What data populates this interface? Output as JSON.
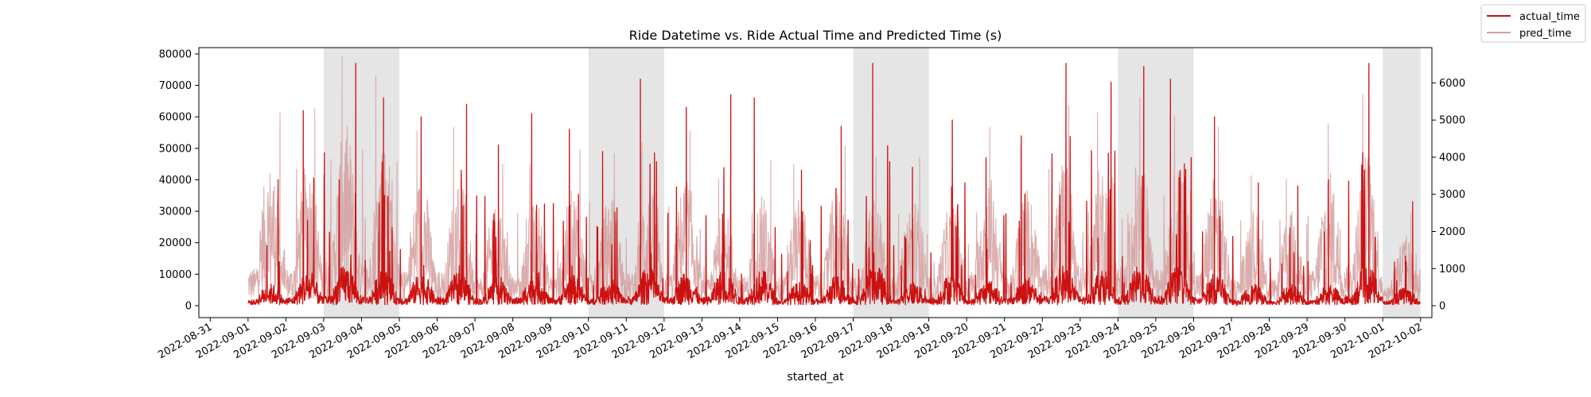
{
  "chart_data": {
    "type": "line",
    "title": "Ride Datetime vs. Ride Actual Time and Predicted Time (s)",
    "xlabel": "started_at",
    "ylabel": "",
    "x_range": [
      "2022-08-30T16:48:00",
      "2022-10-02T07:12:00"
    ],
    "x_ticks": [
      "2022-08-31",
      "2022-09-01",
      "2022-09-02",
      "2022-09-03",
      "2022-09-04",
      "2022-09-05",
      "2022-09-06",
      "2022-09-07",
      "2022-09-08",
      "2022-09-09",
      "2022-09-10",
      "2022-09-11",
      "2022-09-12",
      "2022-09-13",
      "2022-09-14",
      "2022-09-15",
      "2022-09-16",
      "2022-09-17",
      "2022-09-18",
      "2022-09-19",
      "2022-09-20",
      "2022-09-21",
      "2022-09-22",
      "2022-09-23",
      "2022-09-24",
      "2022-09-25",
      "2022-09-26",
      "2022-09-27",
      "2022-09-28",
      "2022-09-29",
      "2022-09-30",
      "2022-10-01",
      "2022-10-02"
    ],
    "y_left": {
      "range": [
        -3800,
        82000
      ],
      "ticks": [
        0,
        10000,
        20000,
        30000,
        40000,
        50000,
        60000,
        70000,
        80000
      ]
    },
    "y_right": {
      "range": [
        -320,
        6950
      ],
      "ticks": [
        0,
        1000,
        2000,
        3000,
        4000,
        5000,
        6000
      ]
    },
    "weekend_shading": [
      [
        "2022-09-03",
        "2022-09-05"
      ],
      [
        "2022-09-10",
        "2022-09-12"
      ],
      [
        "2022-09-17",
        "2022-09-19"
      ],
      [
        "2022-09-24",
        "2022-09-26"
      ],
      [
        "2022-10-01",
        "2022-10-01"
      ]
    ],
    "series": [
      {
        "name": "actual_time",
        "color": "#cc1111",
        "axis": "left",
        "daily_peak_values": [
          [
            "2022-09-01",
            40000
          ],
          [
            "2022-09-02",
            62000
          ],
          [
            "2022-09-03",
            77000
          ],
          [
            "2022-09-04",
            66000
          ],
          [
            "2022-09-05",
            60000
          ],
          [
            "2022-09-06",
            64000
          ],
          [
            "2022-09-07",
            51000
          ],
          [
            "2022-09-08",
            61000
          ],
          [
            "2022-09-09",
            56000
          ],
          [
            "2022-09-10",
            49000
          ],
          [
            "2022-09-11",
            72000
          ],
          [
            "2022-09-12",
            63000
          ],
          [
            "2022-09-13",
            67000
          ],
          [
            "2022-09-14",
            66000
          ],
          [
            "2022-09-15",
            43000
          ],
          [
            "2022-09-16",
            57000
          ],
          [
            "2022-09-17",
            77000
          ],
          [
            "2022-09-18",
            44000
          ],
          [
            "2022-09-19",
            59000
          ],
          [
            "2022-09-20",
            47000
          ],
          [
            "2022-09-21",
            54000
          ],
          [
            "2022-09-22",
            77000
          ],
          [
            "2022-09-23",
            71000
          ],
          [
            "2022-09-24",
            76000
          ],
          [
            "2022-09-25",
            72000
          ],
          [
            "2022-09-26",
            60000
          ],
          [
            "2022-09-27",
            39000
          ],
          [
            "2022-09-28",
            38000
          ],
          [
            "2022-09-29",
            40000
          ],
          [
            "2022-09-30",
            77000
          ],
          [
            "2022-10-01",
            33000
          ]
        ]
      },
      {
        "name": "pred_time",
        "color": "#d4a0a0",
        "axis": "right",
        "daily_peak_values": [
          [
            "2022-09-01",
            5200
          ],
          [
            "2022-09-02",
            5300
          ],
          [
            "2022-09-03",
            6700
          ],
          [
            "2022-09-04",
            6200
          ],
          [
            "2022-09-05",
            4700
          ],
          [
            "2022-09-06",
            4800
          ],
          [
            "2022-09-07",
            3800
          ],
          [
            "2022-09-08",
            3800
          ],
          [
            "2022-09-09",
            4200
          ],
          [
            "2022-09-10",
            4100
          ],
          [
            "2022-09-11",
            4400
          ],
          [
            "2022-09-12",
            4700
          ],
          [
            "2022-09-13",
            3400
          ],
          [
            "2022-09-14",
            3900
          ],
          [
            "2022-09-15",
            3800
          ],
          [
            "2022-09-16",
            4300
          ],
          [
            "2022-09-17",
            4000
          ],
          [
            "2022-09-18",
            4000
          ],
          [
            "2022-09-19",
            3600
          ],
          [
            "2022-09-20",
            4800
          ],
          [
            "2022-09-21",
            4300
          ],
          [
            "2022-09-22",
            5400
          ],
          [
            "2022-09-23",
            5200
          ],
          [
            "2022-09-24",
            5600
          ],
          [
            "2022-09-25",
            5100
          ],
          [
            "2022-09-26",
            4800
          ],
          [
            "2022-09-27",
            3500
          ],
          [
            "2022-09-28",
            3400
          ],
          [
            "2022-09-29",
            4900
          ],
          [
            "2022-09-30",
            5700
          ],
          [
            "2022-10-01",
            2500
          ]
        ]
      }
    ],
    "legend": {
      "placement": "top-right",
      "entries": [
        "actual_time",
        "pred_time"
      ]
    },
    "grid": false
  }
}
